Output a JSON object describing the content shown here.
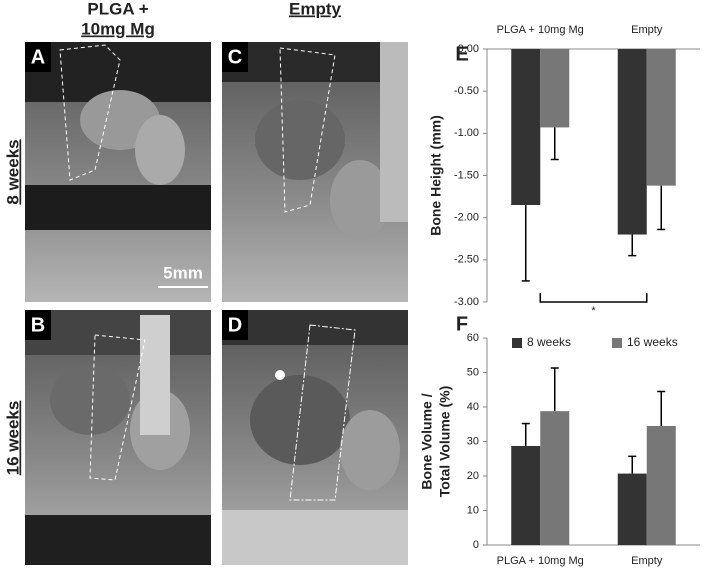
{
  "figure": {
    "column_headers": [
      {
        "lines": [
          "PLGA +",
          "10mg Mg"
        ]
      },
      {
        "lines": [
          "Empty"
        ]
      }
    ],
    "row_labels": [
      "8 weeks",
      "16 weeks"
    ],
    "image_panels": [
      "A",
      "B",
      "C",
      "D"
    ],
    "scale_bar": "5mm"
  },
  "chart_data": [
    {
      "type": "bar",
      "panel": "E",
      "ylabel": [
        "Bone Height (mm)"
      ],
      "categories": [
        "PLGA + 10mg Mg",
        "Empty"
      ],
      "series": [
        {
          "name": "8 weeks",
          "color": "#333333",
          "values": [
            -1.85,
            -2.2
          ],
          "errors": [
            0.9,
            0.25
          ]
        },
        {
          "name": "16 weeks",
          "color": "#777777",
          "values": [
            -0.93,
            -1.62
          ],
          "errors": [
            0.38,
            0.52
          ]
        }
      ],
      "ylim": [
        -3,
        0
      ],
      "yticks": [
        {
          "value": 0,
          "label": "0.00"
        },
        {
          "value": -0.5,
          "label": "-0.50"
        },
        {
          "value": -1,
          "label": "-1.00"
        },
        {
          "value": -1.5,
          "label": "-1.50"
        },
        {
          "value": -2,
          "label": "-2.00"
        },
        {
          "value": -2.5,
          "label": "-2.50"
        },
        {
          "value": -3,
          "label": "-3.00"
        }
      ],
      "significance": "*"
    },
    {
      "type": "bar",
      "panel": "F",
      "ylabel": [
        "Bone Volume /",
        "Total Volume (%)"
      ],
      "categories": [
        "PLGA + 10mg Mg",
        "Empty"
      ],
      "series": [
        {
          "name": "8 weeks",
          "color": "#333333",
          "values": [
            28.7,
            20.7
          ],
          "errors": [
            6.5,
            5
          ]
        },
        {
          "name": "16 weeks",
          "color": "#777777",
          "values": [
            38.8,
            34.5
          ],
          "errors": [
            12.5,
            10
          ]
        }
      ],
      "ylim": [
        0,
        60
      ],
      "yticks": [
        0,
        10,
        20,
        30,
        40,
        50,
        60
      ],
      "legend": "top"
    }
  ]
}
